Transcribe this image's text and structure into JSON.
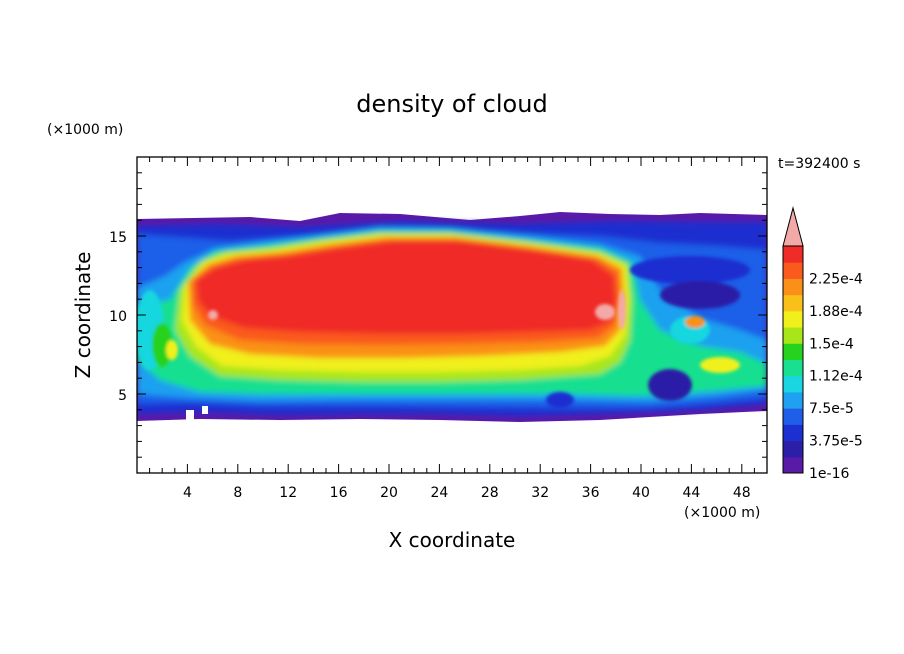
{
  "chart_data": {
    "type": "heatmap",
    "title": "density of cloud",
    "xlabel": "X coordinate",
    "ylabel": "Z coordinate",
    "x_unit": "(×1000 m)",
    "y_unit": "(×1000 m)",
    "time_label": "t=392400 s",
    "xlim": [
      0,
      50
    ],
    "ylim": [
      0,
      20
    ],
    "xticks": [
      4,
      8,
      12,
      16,
      20,
      24,
      28,
      32,
      36,
      40,
      44,
      48
    ],
    "yticks": [
      5,
      10,
      15
    ],
    "cloud_layer": {
      "base": 3.3,
      "top": 16.0,
      "core_x": [
        4,
        39
      ],
      "core_z": [
        8,
        15.5
      ]
    },
    "colorbar": {
      "labels": [
        "1e-16",
        "3.75e-5",
        "7.5e-5",
        "1.12e-4",
        "1.5e-4",
        "1.88e-4",
        "2.25e-4"
      ],
      "levels": [
        0,
        1.87e-05,
        3.75e-05,
        5.62e-05,
        7.5e-05,
        9.37e-05,
        0.000112,
        0.000131,
        0.00015,
        0.000169,
        0.000188,
        0.000206,
        0.000225,
        0.000244
      ],
      "colors": [
        "#5a1aa8",
        "#2a1fa6",
        "#1c2fd0",
        "#1f5ee8",
        "#1fa0f0",
        "#19d6e0",
        "#18e090",
        "#27d21e",
        "#a8e61a",
        "#f0f01c",
        "#f8c018",
        "#fa9018",
        "#fa5a1c",
        "#f02c28"
      ],
      "extend_color": "#f4a9a9"
    }
  }
}
